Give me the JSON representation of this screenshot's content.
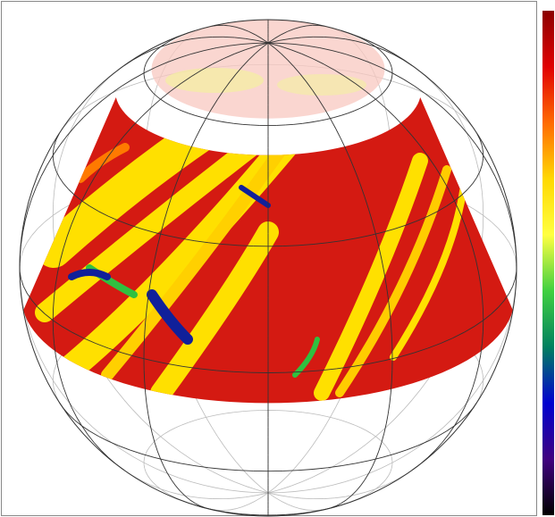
{
  "colorbar": {
    "colors": [
      "#8b0000",
      "#e00000",
      "#ff6a00",
      "#ffd800",
      "#ffff40",
      "#40d040",
      "#008060",
      "#0000d0",
      "#400080",
      "#000000"
    ]
  }
}
